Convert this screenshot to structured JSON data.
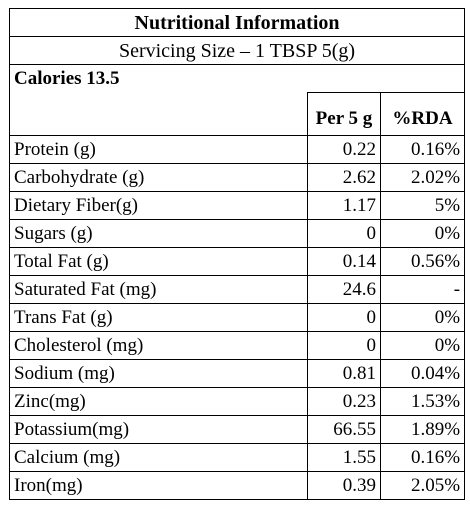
{
  "label": {
    "title": "Nutritional Information",
    "serving": "Servicing Size – 1 TBSP 5(g)",
    "calories": "Calories 13.5",
    "headers": {
      "per": "Per 5 g",
      "rda": "%RDA"
    },
    "rows": [
      {
        "name": "Protein (g)",
        "per": "0.22",
        "rda": "0.16%"
      },
      {
        "name": "Carbohydrate (g)",
        "per": "2.62",
        "rda": "2.02%"
      },
      {
        "name": "Dietary Fiber(g)",
        "per": "1.17",
        "rda": "5%"
      },
      {
        "name": "Sugars (g)",
        "per": "0",
        "rda": "0%"
      },
      {
        "name": "Total Fat (g)",
        "per": "0.14",
        "rda": "0.56%"
      },
      {
        "name": "Saturated Fat (mg)",
        "per": "24.6",
        "rda": "-"
      },
      {
        "name": "Trans Fat (g)",
        "per": "0",
        "rda": "0%"
      },
      {
        "name": "Cholesterol (mg)",
        "per": "0",
        "rda": "0%"
      },
      {
        "name": "Sodium (mg)",
        "per": "0.81",
        "rda": "0.04%"
      },
      {
        "name": "Zinc(mg)",
        "per": "0.23",
        "rda": "1.53%"
      },
      {
        "name": "Potassium(mg)",
        "per": "66.55",
        "rda": "1.89%"
      },
      {
        "name": "Calcium (mg)",
        "per": "1.55",
        "rda": "0.16%"
      },
      {
        "name": "Iron(mg)",
        "per": "0.39",
        "rda": "2.05%"
      }
    ]
  }
}
